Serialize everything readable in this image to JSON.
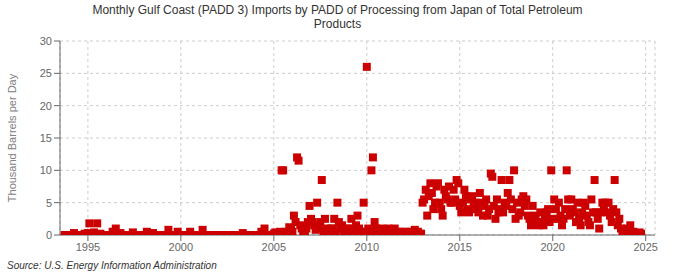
{
  "chart_data": {
    "type": "scatter",
    "title": "Monthly Gulf Coast (PADD 3) Imports by PADD of Processing from Japan of Total Petroleum\nProducts",
    "y_label": "Thousand Barrels per Day",
    "annotations": [
      "Source: U.S. Energy Information Administration"
    ],
    "color": "#cc0000",
    "marker": "square",
    "grid": true,
    "xlim": [
      1993.5,
      2025.5
    ],
    "xticks": [
      1995,
      2000,
      2005,
      2010,
      2015,
      2020,
      2025
    ],
    "ylim": [
      0,
      30
    ],
    "yticks": [
      0,
      5,
      10,
      15,
      20,
      25,
      30
    ],
    "x": [
      1993.75,
      1993.83,
      1993.92,
      1994.0,
      1994.08,
      1994.17,
      1994.25,
      1994.33,
      1994.42,
      1994.5,
      1994.58,
      1994.67,
      1994.75,
      1994.83,
      1994.92,
      1995.0,
      1995.08,
      1995.17,
      1995.25,
      1995.33,
      1995.42,
      1995.5,
      1995.58,
      1995.67,
      1995.75,
      1995.83,
      1995.92,
      1996.0,
      1996.08,
      1996.17,
      1996.25,
      1996.33,
      1996.42,
      1996.5,
      1996.58,
      1996.67,
      1996.75,
      1996.83,
      1996.92,
      1997.0,
      1997.08,
      1997.17,
      1997.25,
      1997.33,
      1997.42,
      1997.5,
      1997.58,
      1997.67,
      1997.75,
      1997.83,
      1997.92,
      1998.0,
      1998.08,
      1998.17,
      1998.25,
      1998.33,
      1998.42,
      1998.5,
      1998.58,
      1998.67,
      1998.75,
      1998.83,
      1998.92,
      1999.0,
      1999.17,
      1999.33,
      1999.5,
      1999.67,
      1999.83,
      2000.0,
      2000.17,
      2000.33,
      2000.5,
      2000.67,
      2000.83,
      2001.0,
      2001.17,
      2001.33,
      2001.5,
      2001.67,
      2001.83,
      2002.0,
      2002.17,
      2002.33,
      2002.5,
      2002.67,
      2002.83,
      2003.0,
      2003.17,
      2003.33,
      2003.5,
      2003.67,
      2003.83,
      2004.0,
      2004.17,
      2004.33,
      2004.5,
      2004.67,
      2004.83,
      2005.0,
      2005.08,
      2005.17,
      2005.25,
      2005.33,
      2005.42,
      2005.5,
      2005.58,
      2005.67,
      2005.75,
      2005.83,
      2005.92,
      2006.0,
      2006.08,
      2006.17,
      2006.25,
      2006.33,
      2006.42,
      2006.5,
      2006.58,
      2006.67,
      2006.75,
      2006.83,
      2006.92,
      2007.0,
      2007.08,
      2007.17,
      2007.25,
      2007.33,
      2007.42,
      2007.5,
      2007.58,
      2007.67,
      2007.75,
      2007.83,
      2007.92,
      2008.0,
      2008.08,
      2008.17,
      2008.25,
      2008.33,
      2008.42,
      2008.5,
      2008.58,
      2008.67,
      2008.75,
      2008.83,
      2008.92,
      2009.0,
      2009.08,
      2009.17,
      2009.25,
      2009.33,
      2009.42,
      2009.5,
      2009.58,
      2009.67,
      2009.75,
      2009.83,
      2009.92,
      2010.0,
      2010.08,
      2010.17,
      2010.25,
      2010.33,
      2010.42,
      2010.5,
      2010.58,
      2010.67,
      2010.75,
      2010.83,
      2010.92,
      2011.0,
      2011.08,
      2011.17,
      2011.25,
      2011.33,
      2011.42,
      2011.5,
      2011.58,
      2011.67,
      2011.75,
      2011.83,
      2011.92,
      2012.0,
      2012.08,
      2012.17,
      2012.25,
      2012.33,
      2012.42,
      2012.5,
      2012.58,
      2012.67,
      2012.75,
      2012.83,
      2012.92,
      2013.0,
      2013.08,
      2013.17,
      2013.25,
      2013.33,
      2013.42,
      2013.5,
      2013.58,
      2013.67,
      2013.75,
      2013.83,
      2013.92,
      2014.0,
      2014.08,
      2014.17,
      2014.25,
      2014.33,
      2014.42,
      2014.5,
      2014.58,
      2014.67,
      2014.75,
      2014.83,
      2014.92,
      2015.0,
      2015.08,
      2015.17,
      2015.25,
      2015.33,
      2015.42,
      2015.5,
      2015.58,
      2015.67,
      2015.75,
      2015.83,
      2015.92,
      2016.0,
      2016.08,
      2016.17,
      2016.25,
      2016.33,
      2016.42,
      2016.5,
      2016.58,
      2016.67,
      2016.75,
      2016.83,
      2016.92,
      2017.0,
      2017.08,
      2017.17,
      2017.25,
      2017.33,
      2017.42,
      2017.5,
      2017.58,
      2017.67,
      2017.75,
      2017.83,
      2017.92,
      2018.0,
      2018.08,
      2018.17,
      2018.25,
      2018.33,
      2018.42,
      2018.5,
      2018.58,
      2018.67,
      2018.75,
      2018.83,
      2018.92,
      2019.0,
      2019.08,
      2019.17,
      2019.25,
      2019.33,
      2019.42,
      2019.5,
      2019.58,
      2019.67,
      2019.75,
      2019.83,
      2019.92,
      2020.0,
      2020.08,
      2020.17,
      2020.25,
      2020.33,
      2020.42,
      2020.5,
      2020.58,
      2020.67,
      2020.75,
      2020.83,
      2020.92,
      2021.0,
      2021.08,
      2021.17,
      2021.25,
      2021.33,
      2021.42,
      2021.5,
      2021.58,
      2021.67,
      2021.75,
      2021.83,
      2021.92,
      2022.0,
      2022.08,
      2022.17,
      2022.25,
      2022.33,
      2022.42,
      2022.5,
      2022.58,
      2022.67,
      2022.75,
      2022.83,
      2022.92,
      2023.0,
      2023.08,
      2023.17,
      2023.25,
      2023.33,
      2023.42,
      2023.5,
      2023.58,
      2023.67,
      2023.75,
      2023.83,
      2023.92,
      2024.0,
      2024.08,
      2024.17,
      2024.25,
      2024.33,
      2024.42,
      2024.5,
      2024.67,
      2024.75
    ],
    "values": [
      0.0,
      0.0,
      0.0,
      0.0,
      0.0,
      0.0,
      0.3,
      0.0,
      0.0,
      0.0,
      0.0,
      0.0,
      0.0,
      0.2,
      0.0,
      0.3,
      1.8,
      0.0,
      0.0,
      0.4,
      0.0,
      1.8,
      0.0,
      0.2,
      0.0,
      0.0,
      0.0,
      0.0,
      0.0,
      0.0,
      0.0,
      0.5,
      0.0,
      1.0,
      0.0,
      0.0,
      0.3,
      0.0,
      0.0,
      0.0,
      0.0,
      0.0,
      0.0,
      0.0,
      0.4,
      0.0,
      0.0,
      0.0,
      0.0,
      0.0,
      0.0,
      0.0,
      0.0,
      0.5,
      0.0,
      0.0,
      0.0,
      0.3,
      0.0,
      0.0,
      0.0,
      0.0,
      0.0,
      0.0,
      0.0,
      0.8,
      0.0,
      0.0,
      0.5,
      0.0,
      0.0,
      0.0,
      0.5,
      0.0,
      0.0,
      0.0,
      0.8,
      0.0,
      0.0,
      0.0,
      0.0,
      0.0,
      0.0,
      0.0,
      0.0,
      0.0,
      0.0,
      0.0,
      0.0,
      0.3,
      0.0,
      0.0,
      0.0,
      0.0,
      0.0,
      0.5,
      1.0,
      0.0,
      0.0,
      0.2,
      0.4,
      0.3,
      0.0,
      0.5,
      10.0,
      10.0,
      0.3,
      0.5,
      0.2,
      1.2,
      0.8,
      0.5,
      3.0,
      2.0,
      12.0,
      11.5,
      1.5,
      1.0,
      0.5,
      0.5,
      1.0,
      2.0,
      4.5,
      2.5,
      2.0,
      1.5,
      0.8,
      5.0,
      1.0,
      2.0,
      8.5,
      0.5,
      2.5,
      1.0,
      0.3,
      0.5,
      1.0,
      1.0,
      2.5,
      0.5,
      5.0,
      2.0,
      1.0,
      1.5,
      0.5,
      0.3,
      0.5,
      1.0,
      1.0,
      2.5,
      0.5,
      0.8,
      1.5,
      3.0,
      1.0,
      0.3,
      0.5,
      5.0,
      0.5,
      26.0,
      1.0,
      0.5,
      10.0,
      12.0,
      2.0,
      1.0,
      0.5,
      0.3,
      0.5,
      1.0,
      0.5,
      0.3,
      0.5,
      1.0,
      0.5,
      0.3,
      0.5,
      1.0,
      0.3,
      0.5,
      0.2,
      0.5,
      0.3,
      0.2,
      0.5,
      0.3,
      0.2,
      0.5,
      0.3,
      0.2,
      0.8,
      0.3,
      0.5,
      0.2,
      0.2,
      5.0,
      5.5,
      7.0,
      3.0,
      6.0,
      8.0,
      6.5,
      4.0,
      5.0,
      7.5,
      8.0,
      5.0,
      4.0,
      3.0,
      7.0,
      6.0,
      5.5,
      7.5,
      5.0,
      5.0,
      7.0,
      5.5,
      8.5,
      8.0,
      4.5,
      3.5,
      5.0,
      7.0,
      6.0,
      4.0,
      3.5,
      5.5,
      6.0,
      4.5,
      5.0,
      4.0,
      3.5,
      6.5,
      5.0,
      3.0,
      4.5,
      5.5,
      3.0,
      4.0,
      9.5,
      9.0,
      4.5,
      2.5,
      5.5,
      3.5,
      4.0,
      8.5,
      3.5,
      5.0,
      4.5,
      6.5,
      8.5,
      5.5,
      4.0,
      10.0,
      2.5,
      5.0,
      3.0,
      3.5,
      5.5,
      6.0,
      4.5,
      5.5,
      3.0,
      2.5,
      1.5,
      4.5,
      2.0,
      3.0,
      2.0,
      1.5,
      3.5,
      2.0,
      1.5,
      2.5,
      3.5,
      4.0,
      2.0,
      10.0,
      2.5,
      5.5,
      4.0,
      2.5,
      5.0,
      3.0,
      1.5,
      2.5,
      4.0,
      10.0,
      5.5,
      3.0,
      5.5,
      4.0,
      3.5,
      2.0,
      5.0,
      2.5,
      1.5,
      3.5,
      5.0,
      4.5,
      3.0,
      2.0,
      1.5,
      5.5,
      3.5,
      8.5,
      3.5,
      2.5,
      1.0,
      3.5,
      5.0,
      4.5,
      5.0,
      3.5,
      5.0,
      3.0,
      2.0,
      4.0,
      8.5,
      3.5,
      1.5,
      2.5,
      1.0,
      0.5,
      0.5,
      0.5,
      1.0,
      0.5,
      1.5,
      0.3,
      0.5,
      0.3,
      0.2,
      0.4,
      0.2
    ]
  }
}
